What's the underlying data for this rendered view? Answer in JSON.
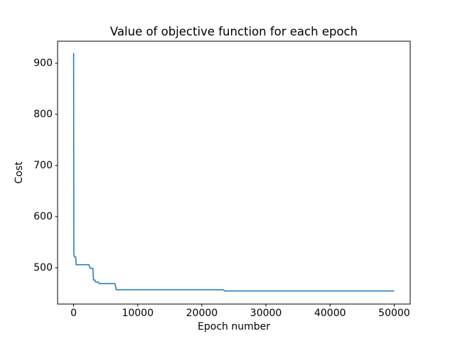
{
  "figure": {
    "background": "#ffffff"
  },
  "chart_data": {
    "type": "line",
    "title": "Value of objective function for each epoch",
    "xlabel": "Epoch number",
    "ylabel": "Cost",
    "xlim": [
      -2500,
      52500
    ],
    "ylim": [
      429,
      943
    ],
    "grid": false,
    "legend": false,
    "line_color": "#1f77b4",
    "axis_color": "#000000",
    "line_width": 1.5,
    "x_ticks": [
      {
        "value": 0,
        "label": "0"
      },
      {
        "value": 10000,
        "label": "10000"
      },
      {
        "value": 20000,
        "label": "20000"
      },
      {
        "value": 30000,
        "label": "30000"
      },
      {
        "value": 40000,
        "label": "40000"
      },
      {
        "value": 50000,
        "label": "50000"
      }
    ],
    "y_ticks": [
      {
        "value": 500,
        "label": "500"
      },
      {
        "value": 600,
        "label": "600"
      },
      {
        "value": 700,
        "label": "700"
      },
      {
        "value": 800,
        "label": "800"
      },
      {
        "value": 900,
        "label": "900"
      }
    ],
    "series": [
      {
        "name": "Cost",
        "points": [
          [
            0,
            920
          ],
          [
            40,
            527
          ],
          [
            150,
            521
          ],
          [
            330,
            521
          ],
          [
            400,
            506
          ],
          [
            2400,
            506
          ],
          [
            2550,
            499
          ],
          [
            3000,
            499
          ],
          [
            3100,
            476
          ],
          [
            3320,
            476
          ],
          [
            3450,
            472
          ],
          [
            3850,
            472
          ],
          [
            3980,
            469
          ],
          [
            6450,
            469
          ],
          [
            6650,
            457
          ],
          [
            23300,
            457
          ],
          [
            23600,
            454.5
          ],
          [
            50000,
            454.5
          ]
        ]
      }
    ]
  }
}
